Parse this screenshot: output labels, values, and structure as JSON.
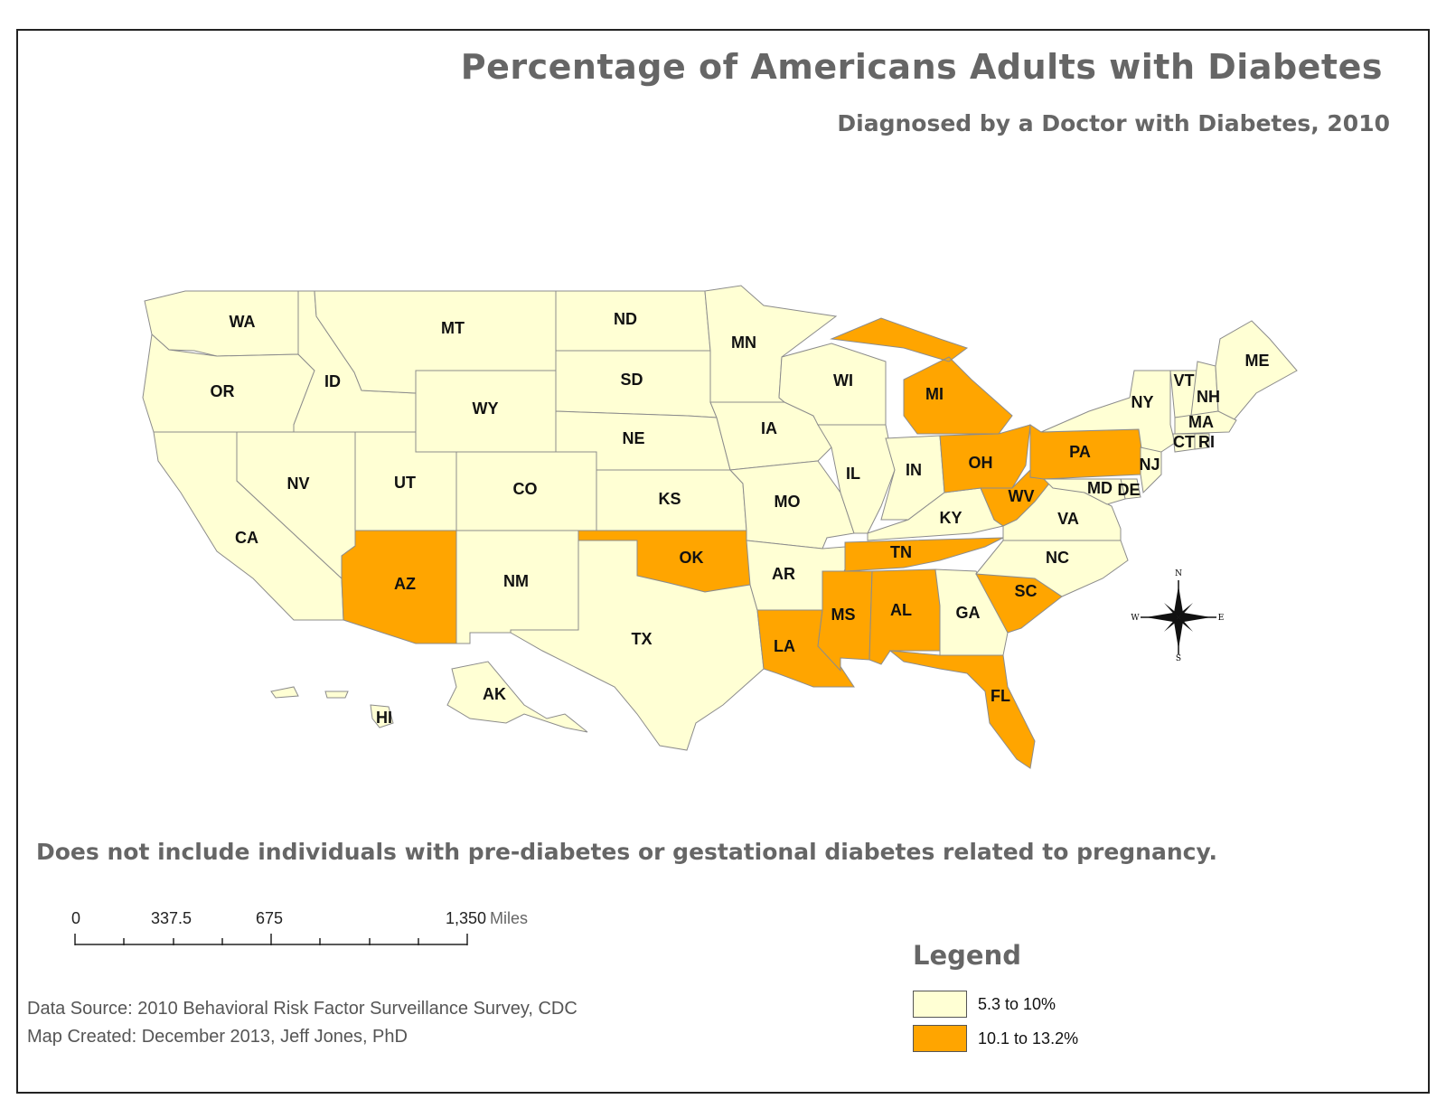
{
  "title": "Percentage of Americans Adults with Diabetes",
  "subtitle": "Diagnosed by a Doctor with Diabetes, 2010",
  "note": "Does not include individuals with pre-diabetes or gestational diabetes related to pregnancy.",
  "colors": {
    "low": "#ffffd4",
    "high": "#ffa500",
    "border": "#8c8c8c"
  },
  "classes": {
    "WA": "low",
    "OR": "low",
    "CA": "low",
    "NV": "low",
    "ID": "low",
    "MT": "low",
    "WY": "low",
    "UT": "low",
    "AZ": "high",
    "CO": "low",
    "NM": "low",
    "ND": "low",
    "SD": "low",
    "NE": "low",
    "KS": "low",
    "OK": "high",
    "TX": "low",
    "MN": "low",
    "IA": "low",
    "MO": "low",
    "AR": "low",
    "LA": "high",
    "WI": "low",
    "IL": "low",
    "MS": "high",
    "MI": "high",
    "IN": "low",
    "KY": "low",
    "TN": "high",
    "AL": "high",
    "OH": "high",
    "WV": "high",
    "GA": "low",
    "FL": "high",
    "SC": "high",
    "NC": "low",
    "VA": "low",
    "PA": "high",
    "NY": "low",
    "VT": "low",
    "NH": "low",
    "ME": "low",
    "MA": "low",
    "CT": "low",
    "RI": "low",
    "NJ": "low",
    "DE": "low",
    "MD": "low",
    "AK": "low",
    "HI": "low"
  },
  "compass": {
    "n": "N",
    "s": "S",
    "e": "E",
    "w": "W"
  },
  "scale": {
    "ticks": [
      "0",
      "337.5",
      "675",
      "1,350"
    ],
    "unit": "Miles"
  },
  "legend": {
    "title": "Legend",
    "items": [
      {
        "label": "5.3 to 10%",
        "class": "low"
      },
      {
        "label": "10.1 to 13.2%",
        "class": "high"
      }
    ]
  },
  "credits": {
    "source": "Data Source:  2010 Behavioral Risk Factor Surveillance Survey, CDC",
    "created": "Map Created:  December 2013, Jeff Jones, PhD"
  }
}
